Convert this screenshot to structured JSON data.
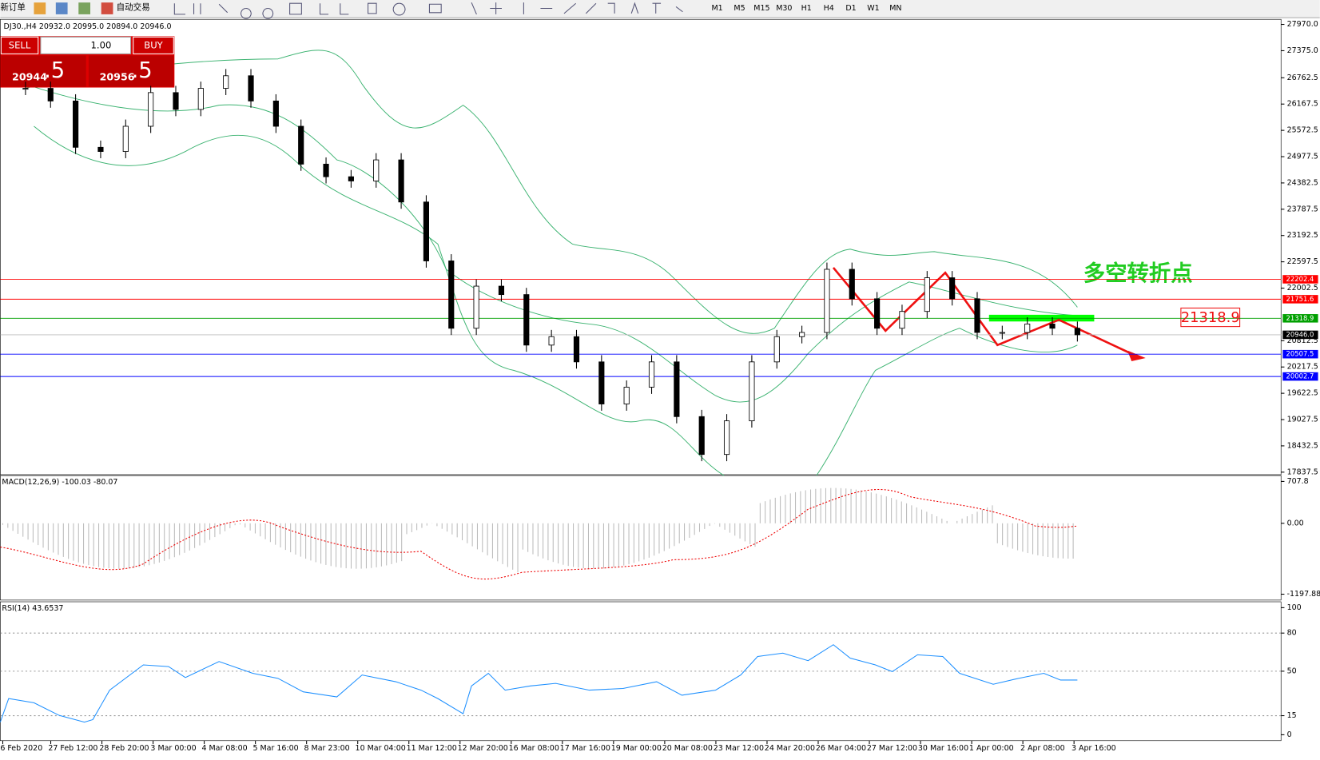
{
  "toolbar": {
    "new_order": "新订单",
    "auto_trade": "自动交易",
    "timeframes": [
      "M1",
      "M5",
      "M15",
      "M30",
      "H1",
      "H4",
      "D1",
      "W1",
      "MN"
    ]
  },
  "chart_header": "DJ30.,H4  20932.0 20995.0 20894.0 20946.0",
  "trade_panel": {
    "sell": "SELL",
    "buy": "BUY",
    "lots": "1.00",
    "bid_main": "20944",
    "bid_pip": ".5",
    "ask_main": "20956",
    "ask_pip": ".5"
  },
  "annotation": "多空转折点",
  "price_chart": {
    "ylim": [
      17837.5,
      27970
    ],
    "yticks": [
      {
        "value": 27970,
        "label": "27970.0"
      },
      {
        "value": 27375,
        "label": "27375.0"
      },
      {
        "value": 26762.5,
        "label": "26762.5"
      },
      {
        "value": 26167.5,
        "label": "26167.5"
      },
      {
        "value": 25572.5,
        "label": "25572.5"
      },
      {
        "value": 24977.5,
        "label": "24977.5"
      },
      {
        "value": 24382.5,
        "label": "24382.5"
      },
      {
        "value": 23787.5,
        "label": "23787.5"
      },
      {
        "value": 23192.5,
        "label": "23192.5"
      },
      {
        "value": 22597.5,
        "label": "22597.5"
      },
      {
        "value": 22002.5,
        "label": "22002.5"
      },
      {
        "value": 20812.5,
        "label": "20812.5"
      },
      {
        "value": 20217.5,
        "label": "20217.5"
      },
      {
        "value": 19622.5,
        "label": "19622.5"
      },
      {
        "value": 19027.5,
        "label": "19027.5"
      },
      {
        "value": 18432.5,
        "label": "18432.5"
      },
      {
        "value": 17837.5,
        "label": "17837.5"
      }
    ],
    "levels": [
      {
        "value": 22202.4,
        "color": "#ff0000"
      },
      {
        "value": 21751.6,
        "color": "#ff0000"
      },
      {
        "value": 21318.9,
        "color": "#00a000"
      },
      {
        "value": {
          "value": 20946,
          "label": "20946.0"
        },
        "color": "#000000"
      },
      {
        "value": 20507.5,
        "color": "#0000ff"
      },
      {
        "value": 20002.7,
        "color": "#0000ff"
      }
    ],
    "close": [
      26523,
      26237,
      25189,
      25094,
      25665,
      26427,
      26046,
      26523,
      26808,
      26237,
      25665,
      24808,
      24523,
      24427,
      24904,
      23951,
      22618,
      21094,
      22047,
      21856,
      20713,
      20904,
      20333,
      19380,
      19761,
      20333,
      19095,
      18238,
      18999,
      20333,
      20904,
      20999,
      22428,
      21761,
      21094,
      21475,
      22237,
      21761,
      20999,
      20999,
      21190,
      21094,
      20946
    ]
  },
  "time_labels": [
    "6 Feb 2020",
    "27 Feb 12:00",
    "28 Feb 20:00",
    "3 Mar 00:00",
    "4 Mar 08:00",
    "5 Mar 16:00",
    "8 Mar 23:00",
    "10 Mar 04:00",
    "11 Mar 12:00",
    "12 Mar 20:00",
    "16 Mar 08:00",
    "17 Mar 16:00",
    "19 Mar 00:00",
    "20 Mar 08:00",
    "23 Mar 12:00",
    "24 Mar 20:00",
    "26 Mar 04:00",
    "27 Mar 12:00",
    "30 Mar 16:00",
    "1 Apr 00:00",
    "2 Apr 08:00",
    "3 Apr 16:00"
  ],
  "macd": {
    "label": "MACD(12,26,9) -100.03 -80.07",
    "ylim": [
      -1197.88,
      707.8
    ],
    "yticks": [
      707.8,
      {
        "value": 0,
        "label": "0.00"
      },
      -1197.88
    ]
  },
  "rsi": {
    "label": "RSI(14) 43.6537",
    "ylim": [
      0,
      100
    ],
    "yticks": [
      100,
      80,
      50,
      15,
      0
    ]
  }
}
